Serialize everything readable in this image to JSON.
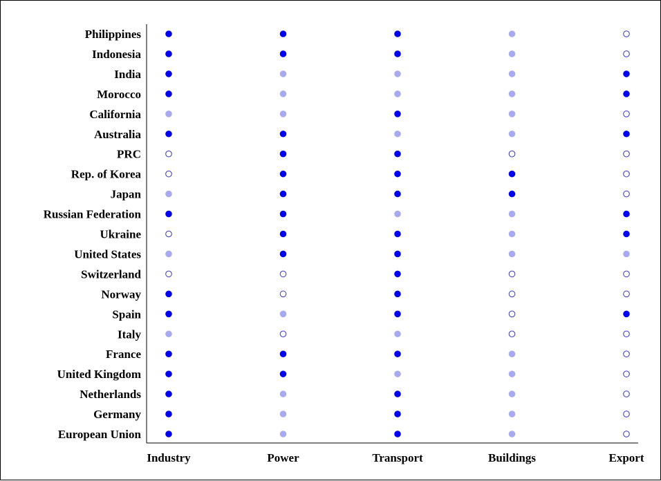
{
  "chart_data": {
    "type": "scatter",
    "title": "",
    "xlabel": "",
    "ylabel": "",
    "grid": false,
    "legend": "none",
    "categories_x": [
      "Industry",
      "Power",
      "Transport",
      "Buildings",
      "Export"
    ],
    "categories_y": [
      "Philippines",
      "Indonesia",
      "India",
      "Morocco",
      "California",
      "Australia",
      "PRC",
      "Rep. of Korea",
      "Japan",
      "Russian Federation",
      "Ukraine",
      "United States",
      "Switzerland",
      "Norway",
      "Spain",
      "Italy",
      "France",
      "United Kingdom",
      "Netherlands",
      "Germany",
      "European Union"
    ],
    "levels": {
      "2": "filled-dark",
      "1": "filled-light",
      "0": "hollow"
    },
    "colors": {
      "dark": "#0000ee",
      "light": "#a8aaf0",
      "hollow_stroke": "#3333cc"
    },
    "values": [
      [
        2,
        2,
        2,
        1,
        0
      ],
      [
        2,
        2,
        2,
        1,
        0
      ],
      [
        2,
        1,
        1,
        1,
        2
      ],
      [
        2,
        1,
        1,
        1,
        2
      ],
      [
        1,
        1,
        2,
        1,
        0
      ],
      [
        2,
        2,
        1,
        1,
        2
      ],
      [
        0,
        2,
        2,
        0,
        0
      ],
      [
        0,
        2,
        2,
        2,
        0
      ],
      [
        1,
        2,
        2,
        2,
        0
      ],
      [
        2,
        2,
        1,
        1,
        2
      ],
      [
        0,
        2,
        2,
        1,
        2
      ],
      [
        1,
        2,
        2,
        1,
        1
      ],
      [
        0,
        0,
        2,
        0,
        0
      ],
      [
        2,
        0,
        2,
        0,
        0
      ],
      [
        2,
        1,
        2,
        0,
        2
      ],
      [
        1,
        0,
        1,
        0,
        0
      ],
      [
        2,
        2,
        2,
        1,
        0
      ],
      [
        2,
        2,
        1,
        1,
        0
      ],
      [
        2,
        1,
        2,
        1,
        0
      ],
      [
        2,
        1,
        2,
        1,
        0
      ],
      [
        2,
        1,
        2,
        1,
        0
      ]
    ]
  }
}
